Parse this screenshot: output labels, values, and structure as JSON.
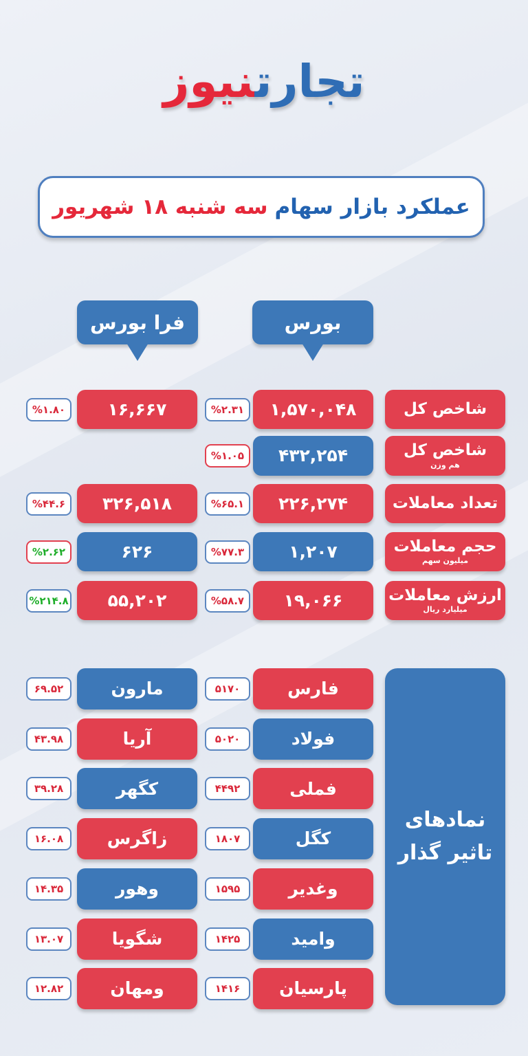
{
  "logo": {
    "part1": "تجارت",
    "part2": "نیوز"
  },
  "title": {
    "part1": "عملکرد بازار سهام",
    "part2": "سه شنبه ۱۸ شهریور"
  },
  "headers": {
    "bourse": "بورس",
    "farabourse": "فرا بورس"
  },
  "colors": {
    "red": "#e2404f",
    "blue": "#3d78b8",
    "green": "#1fae2a"
  },
  "indicators": [
    {
      "label": "شاخص کل",
      "sub": "",
      "bourse": {
        "value": "۱,۵۷۰,۰۴۸",
        "color": "red",
        "change": "%۲.۳۱",
        "change_color": "red",
        "border": "blue"
      },
      "farabourse": {
        "value": "۱۶,۶۶۷",
        "color": "red",
        "change": "%۱.۸۰",
        "change_color": "red",
        "border": "blue"
      }
    },
    {
      "label": "شاخص کل",
      "sub": "هم وزن",
      "bourse": {
        "value": "۴۳۲,۲۵۴",
        "color": "blue",
        "change": "%۱.۰۵",
        "change_color": "red",
        "border": "red"
      },
      "farabourse": null
    },
    {
      "label": "تعداد معاملات",
      "sub": "",
      "bourse": {
        "value": "۲۲۶,۲۷۴",
        "color": "red",
        "change": "%۶۵.۱",
        "change_color": "red",
        "border": "blue"
      },
      "farabourse": {
        "value": "۳۲۶,۵۱۸",
        "color": "red",
        "change": "%۴۴.۶",
        "change_color": "red",
        "border": "blue"
      }
    },
    {
      "label": "حجم معاملات",
      "sub": "میلیون سهم",
      "bourse": {
        "value": "۱,۲۰۷",
        "color": "blue",
        "change": "%۷۷.۳",
        "change_color": "red",
        "border": "blue"
      },
      "farabourse": {
        "value": "۶۲۶",
        "color": "blue",
        "change": "%۲.۶۲",
        "change_color": "green",
        "border": "red"
      }
    },
    {
      "label": "ارزش معاملات",
      "sub": "میلیارد ریال",
      "bourse": {
        "value": "۱۹,۰۶۶",
        "color": "red",
        "change": "%۵۸.۷",
        "change_color": "red",
        "border": "blue"
      },
      "farabourse": {
        "value": "۵۵,۲۰۲",
        "color": "red",
        "change": "%۲۱۴.۸",
        "change_color": "green",
        "border": "blue"
      }
    }
  ],
  "influential": {
    "title_line1": "نمادهای",
    "title_line2": "تاثیر گذار",
    "rows": [
      {
        "bourse": {
          "name": "فارس",
          "value": "۵۱۷۰",
          "color": "red"
        },
        "farabourse": {
          "name": "مارون",
          "value": "۶۹.۵۲",
          "color": "blue"
        }
      },
      {
        "bourse": {
          "name": "فولاد",
          "value": "۵۰۲۰",
          "color": "blue"
        },
        "farabourse": {
          "name": "آریا",
          "value": "۴۳.۹۸",
          "color": "red"
        }
      },
      {
        "bourse": {
          "name": "فملی",
          "value": "۴۴۹۲",
          "color": "red"
        },
        "farabourse": {
          "name": "کگهر",
          "value": "۳۹.۲۸",
          "color": "blue"
        }
      },
      {
        "bourse": {
          "name": "کگل",
          "value": "۱۸۰۷",
          "color": "blue"
        },
        "farabourse": {
          "name": "زاگرس",
          "value": "۱۶.۰۸",
          "color": "red"
        }
      },
      {
        "bourse": {
          "name": "وغدیر",
          "value": "۱۵۹۵",
          "color": "red"
        },
        "farabourse": {
          "name": "وهور",
          "value": "۱۴.۳۵",
          "color": "blue"
        }
      },
      {
        "bourse": {
          "name": "وامید",
          "value": "۱۴۲۵",
          "color": "blue"
        },
        "farabourse": {
          "name": "شگویا",
          "value": "۱۳.۰۷",
          "color": "red"
        }
      },
      {
        "bourse": {
          "name": "پارسیان",
          "value": "۱۴۱۶",
          "color": "red"
        },
        "farabourse": {
          "name": "ومهان",
          "value": "۱۲.۸۲",
          "color": "red"
        }
      }
    ]
  }
}
